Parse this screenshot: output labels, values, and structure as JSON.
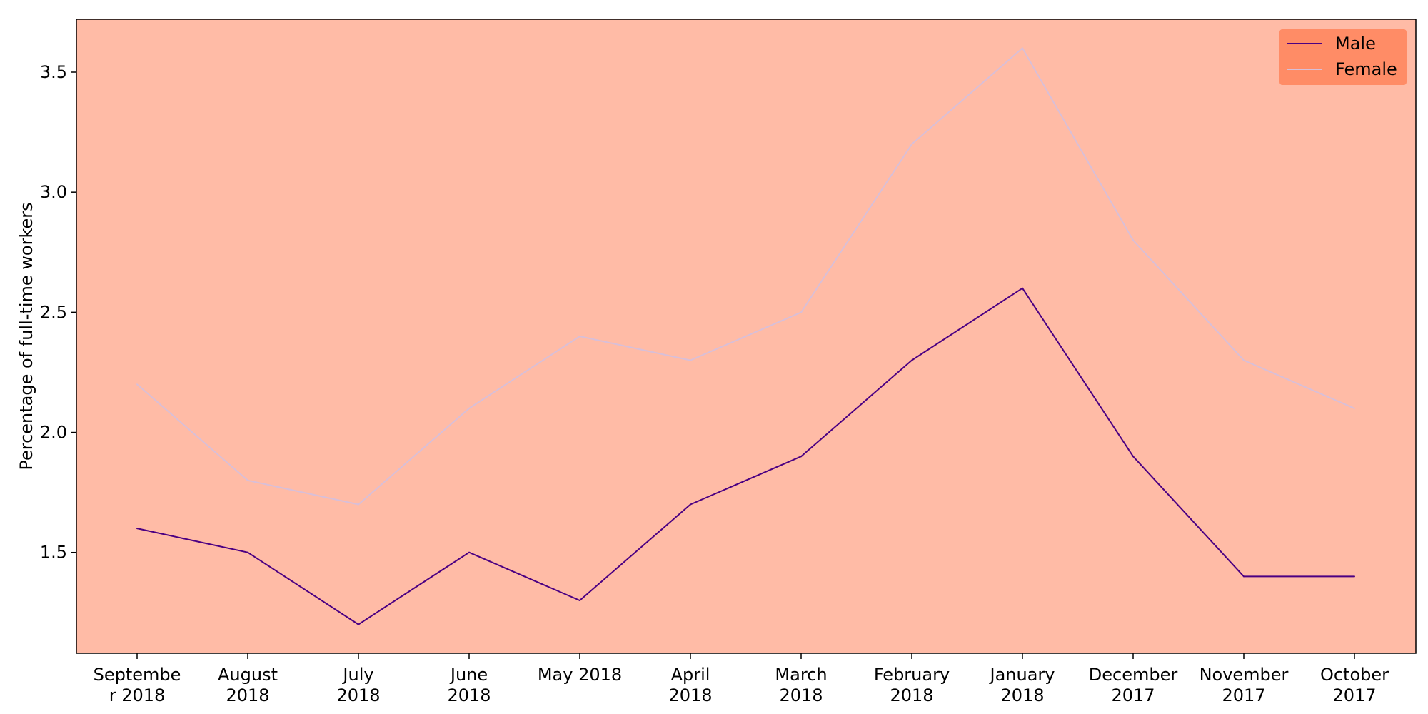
{
  "chart_data": {
    "type": "line",
    "title": "",
    "xlabel": "",
    "ylabel": "Percentage of full-time workers",
    "categories": [
      [
        "Septembe",
        "r 2018"
      ],
      [
        "August",
        "2018"
      ],
      [
        "July",
        "2018"
      ],
      [
        "June",
        "2018"
      ],
      [
        "May 2018"
      ],
      [
        "April",
        "2018"
      ],
      [
        "March",
        "2018"
      ],
      [
        "February",
        "2018"
      ],
      [
        "January",
        "2018"
      ],
      [
        "December",
        "2017"
      ],
      [
        "November",
        "2017"
      ],
      [
        "October",
        "2017"
      ]
    ],
    "series": [
      {
        "name": "Male",
        "color": "#4b0082",
        "values": [
          1.6,
          1.5,
          1.2,
          1.5,
          1.3,
          1.7,
          1.9,
          2.3,
          2.6,
          1.9,
          1.4,
          1.4
        ]
      },
      {
        "name": "Female",
        "color": "#d8bfd8",
        "values": [
          2.2,
          1.8,
          1.7,
          2.1,
          2.4,
          2.3,
          2.5,
          3.2,
          3.6,
          2.8,
          2.3,
          2.1
        ]
      }
    ],
    "ylim": [
      1.08,
      3.72
    ],
    "yticks": [
      1.5,
      2.0,
      2.5,
      3.0,
      3.5
    ],
    "ytick_labels": [
      "1.5",
      "2.0",
      "2.5",
      "3.0",
      "3.5"
    ],
    "grid": false,
    "legend_position": "top-right",
    "colors": {
      "plot_background": "#ffbba6",
      "legend_background": "#ff8c66",
      "axis": "#000000"
    }
  }
}
